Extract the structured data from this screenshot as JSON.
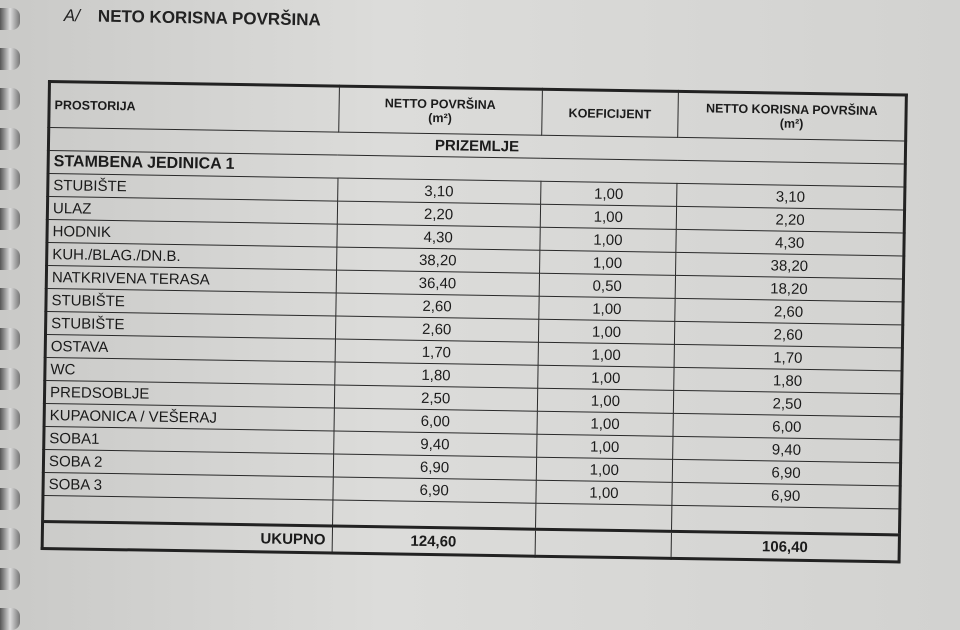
{
  "title": {
    "prefix": "A/",
    "text": "NETO KORISNA POVRŠINA"
  },
  "table": {
    "headers": {
      "room": "PROSTORIJA",
      "net_area": "NETTO POVRŠINA",
      "net_area_unit": "(m²)",
      "coefficient": "KOEFICIJENT",
      "usable_area": "NETTO KORISNA POVRŠINA",
      "usable_area_unit": "(m²)"
    },
    "section": "PRIZEMLJE",
    "unit": "STAMBENA JEDINICA 1",
    "rows": [
      {
        "room": "STUBIŠTE",
        "net": "3,10",
        "coef": "1,00",
        "usable": "3,10"
      },
      {
        "room": "ULAZ",
        "net": "2,20",
        "coef": "1,00",
        "usable": "2,20"
      },
      {
        "room": "HODNIK",
        "net": "4,30",
        "coef": "1,00",
        "usable": "4,30"
      },
      {
        "room": "KUH./BLAG./DN.B.",
        "net": "38,20",
        "coef": "1,00",
        "usable": "38,20"
      },
      {
        "room": "NATKRIVENA TERASA",
        "net": "36,40",
        "coef": "0,50",
        "usable": "18,20"
      },
      {
        "room": "STUBIŠTE",
        "net": "2,60",
        "coef": "1,00",
        "usable": "2,60"
      },
      {
        "room": "STUBIŠTE",
        "net": "2,60",
        "coef": "1,00",
        "usable": "2,60"
      },
      {
        "room": "OSTAVA",
        "net": "1,70",
        "coef": "1,00",
        "usable": "1,70"
      },
      {
        "room": "WC",
        "net": "1,80",
        "coef": "1,00",
        "usable": "1,80"
      },
      {
        "room": "PREDSOBLJE",
        "net": "2,50",
        "coef": "1,00",
        "usable": "2,50"
      },
      {
        "room": "KUPAONICA / VEŠERAJ",
        "net": "6,00",
        "coef": "1,00",
        "usable": "6,00"
      },
      {
        "room": "SOBA1",
        "net": "9,40",
        "coef": "1,00",
        "usable": "9,40"
      },
      {
        "room": "SOBA 2",
        "net": "6,90",
        "coef": "1,00",
        "usable": "6,90"
      },
      {
        "room": "SOBA 3",
        "net": "6,90",
        "coef": "1,00",
        "usable": "6,90"
      }
    ],
    "total": {
      "label": "UKUPNO",
      "net": "124,60",
      "usable": "106,40"
    }
  }
}
